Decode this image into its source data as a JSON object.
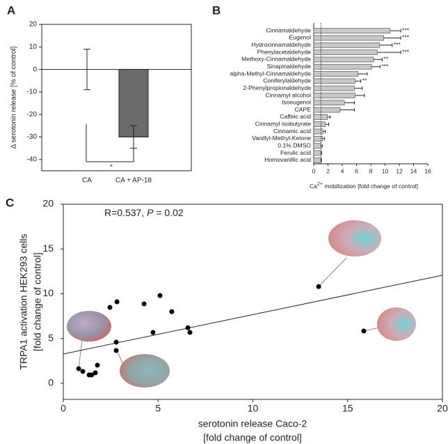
{
  "chart_data": [
    {
      "type": "bar",
      "label": "A",
      "ylabel": "Δ serotonin release [% of control]",
      "categories": [
        "CA",
        "CA + AP-18"
      ],
      "values": [
        0,
        -30
      ],
      "errors": [
        9,
        5
      ],
      "color": "#6b6b6b",
      "ylim": [
        -45,
        20
      ],
      "yticks": [
        -40,
        -30,
        -20,
        -10,
        0,
        10,
        20
      ],
      "significance": "*"
    },
    {
      "type": "hbar",
      "label": "B",
      "xlabel": [
        "Ca",
        "2+",
        " mobilization [fold change of control]"
      ],
      "categories": [
        "Cinnamaldehyde",
        "Eugenol",
        "Hydrocinnamaldehyde",
        "Phenylacetaldehyde",
        "Methoxy-Cinnamaldehyde",
        "Sinapinaldehyde",
        "alpha-Methyl-Cinnamaldehyde",
        "Coniferylaldehyde",
        "2-Phenylpropionaldehyde",
        "Cinnamyl alcohol",
        "Isoeugenol",
        "CAPE",
        "Caffeic acid",
        "Cinnamyl isobutyrate",
        "Cinnamic acid",
        "Vanillyl-Methyl-Ketone",
        "0.1% DMSO",
        "Ferulic acid",
        "Homovanillic acid"
      ],
      "values": [
        10.7,
        9.8,
        9.2,
        8.9,
        8.4,
        8.1,
        6.2,
        5.8,
        5.7,
        5.8,
        4.3,
        3.7,
        1.9,
        1.6,
        1.3,
        1.2,
        1.0,
        1.0,
        1.0
      ],
      "errors": [
        1.5,
        2.4,
        1.8,
        3.3,
        1.2,
        1.2,
        1.3,
        0.8,
        1.1,
        1.3,
        1.4,
        2.0,
        0.4,
        0.5,
        0.3,
        0.3,
        0.2,
        0.1,
        0.1
      ],
      "significance": [
        "***",
        "***",
        "***",
        "***",
        "**",
        "***",
        null,
        "**",
        null,
        null,
        null,
        null,
        null,
        null,
        null,
        null,
        null,
        null,
        null
      ],
      "color": "#c8c8c8",
      "reference_x": 1,
      "xlim": [
        0,
        16
      ],
      "xticks": [
        0,
        2,
        4,
        6,
        8,
        10,
        12,
        14,
        16
      ]
    },
    {
      "type": "scatter",
      "label": "C",
      "annotation": [
        "R=0.537, ",
        "P",
        " = 0.02"
      ],
      "xlabel": [
        "serotonin release Caco-2",
        "[fold change of control]"
      ],
      "ylabel": [
        "TRPA1 activation HEK293 cells",
        "[fold change of control]"
      ],
      "x": [
        0.81,
        1.03,
        1.36,
        1.5,
        1.69,
        1.8,
        2.46,
        2.83,
        2.79,
        2.79,
        4.26,
        5.1,
        4.73,
        5.72,
        6.57,
        6.68,
        13.47,
        15.85
      ],
      "y": [
        1.63,
        1.32,
        0.93,
        0.93,
        1.17,
        2.02,
        8.48,
        9.1,
        4.59,
        3.66,
        8.87,
        9.8,
        5.68,
        8.0,
        6.2,
        5.68,
        10.8,
        5.84
      ],
      "color": "#000000",
      "fit": {
        "intercept": 3.27,
        "slope": 0.44
      },
      "xlim": [
        0,
        20
      ],
      "ylim": [
        -1.8,
        20
      ],
      "xticks": [
        0,
        5,
        10,
        15,
        20
      ],
      "yticks": [
        0,
        5,
        10,
        15,
        20
      ]
    }
  ]
}
